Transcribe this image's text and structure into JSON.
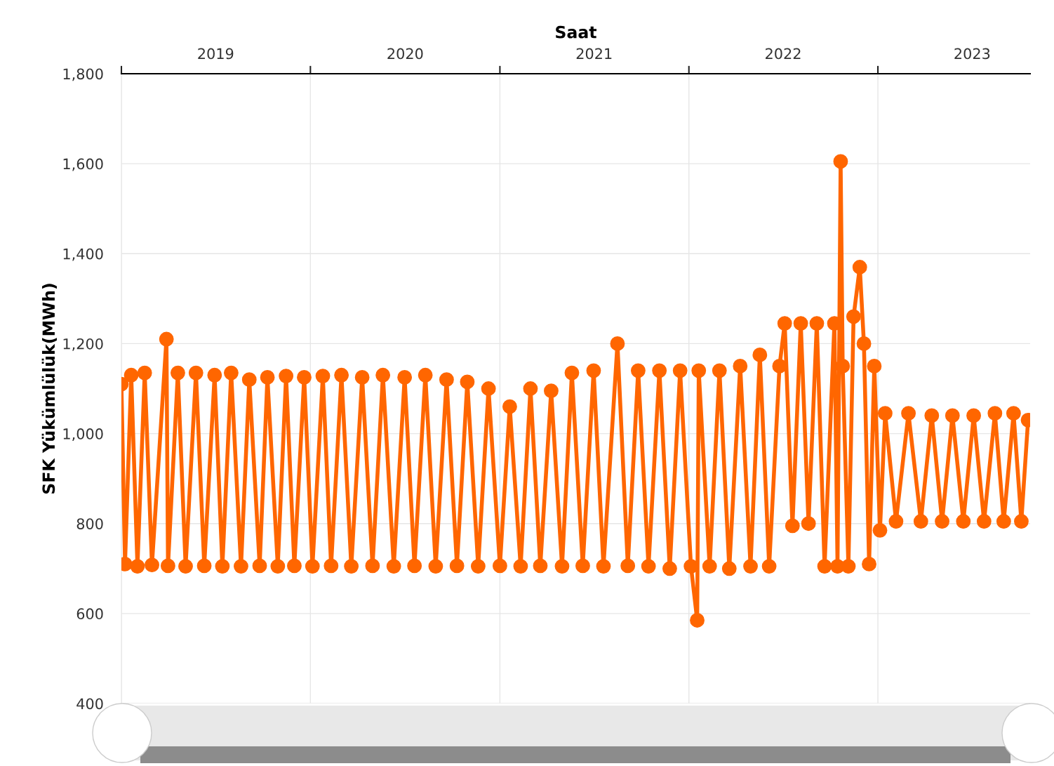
{
  "chart_data": {
    "type": "line",
    "xlabel": "Saat",
    "ylabel": "SFK Yükümlülük(MWh)",
    "xlim": [
      "2019-01-01",
      "2023-10-22"
    ],
    "xticks": [
      {
        "value": "2019-01-01",
        "label": null
      },
      {
        "value": "2019-07-02",
        "label": "2019"
      },
      {
        "value": "2020-01-01",
        "label": null
      },
      {
        "value": "2020-07-02",
        "label": "2020"
      },
      {
        "value": "2021-01-01",
        "label": null
      },
      {
        "value": "2021-07-02",
        "label": "2021"
      },
      {
        "value": "2022-01-01",
        "label": null
      },
      {
        "value": "2022-07-02",
        "label": "2022"
      },
      {
        "value": "2023-01-01",
        "label": null
      },
      {
        "value": "2023-07-02",
        "label": "2023"
      }
    ],
    "ylim": [
      400,
      1800
    ],
    "yticks": [
      400,
      600,
      800,
      {
        "value": 1000,
        "label": "1,000"
      },
      {
        "value": 1200,
        "label": "1,200"
      },
      {
        "value": 1400,
        "label": "1,400"
      },
      {
        "value": 1600,
        "label": "1,600"
      },
      {
        "value": 1800,
        "label": "1,800"
      }
    ],
    "grid": true,
    "marker": "circle",
    "series": [
      {
        "color": "#ff6600",
        "x": [
          "2019-01-01",
          "2019-01-08",
          "2019-01-20",
          "2019-02-01",
          "2019-02-15",
          "2019-03-01",
          "2019-03-29",
          "2019-04-01",
          "2019-04-20",
          "2019-05-05",
          "2019-05-25",
          "2019-06-10",
          "2019-06-30",
          "2019-07-15",
          "2019-08-01",
          "2019-08-20",
          "2019-09-05",
          "2019-09-25",
          "2019-10-10",
          "2019-10-30",
          "2019-11-15",
          "2019-12-01",
          "2019-12-20",
          "2020-01-05",
          "2020-01-25",
          "2020-02-10",
          "2020-03-01",
          "2020-03-20",
          "2020-04-10",
          "2020-04-30",
          "2020-05-20",
          "2020-06-10",
          "2020-07-01",
          "2020-07-20",
          "2020-08-10",
          "2020-08-30",
          "2020-09-20",
          "2020-10-10",
          "2020-10-30",
          "2020-11-20",
          "2020-12-10",
          "2021-01-01",
          "2021-01-20",
          "2021-02-10",
          "2021-03-01",
          "2021-03-20",
          "2021-04-10",
          "2021-05-01",
          "2021-05-20",
          "2021-06-10",
          "2021-07-01",
          "2021-07-20",
          "2021-08-16",
          "2021-09-05",
          "2021-09-25",
          "2021-10-15",
          "2021-11-05",
          "2021-11-25",
          "2021-12-15",
          "2022-01-05",
          "2022-01-17",
          "2022-01-20",
          "2022-02-10",
          "2022-03-01",
          "2022-03-20",
          "2022-04-10",
          "2022-04-30",
          "2022-05-18",
          "2022-06-05",
          "2022-06-25",
          "2022-07-05",
          "2022-07-20",
          "2022-08-05",
          "2022-08-20",
          "2022-09-05",
          "2022-09-20",
          "2022-10-09",
          "2022-10-15",
          "2022-10-21",
          "2022-10-25",
          "2022-11-05",
          "2022-11-15",
          "2022-11-27",
          "2022-12-05",
          "2022-12-15",
          "2022-12-25",
          "2023-01-05",
          "2023-01-15",
          "2023-02-05",
          "2023-03-01",
          "2023-03-25",
          "2023-04-15",
          "2023-05-05",
          "2023-05-25",
          "2023-06-15",
          "2023-07-05",
          "2023-07-25",
          "2023-08-15",
          "2023-09-01",
          "2023-09-20",
          "2023-10-05",
          "2023-10-18"
        ],
        "values": [
          1110,
          710,
          1130,
          705,
          1135,
          708,
          1210,
          706,
          1135,
          705,
          1135,
          706,
          1130,
          705,
          1135,
          705,
          1120,
          706,
          1125,
          705,
          1128,
          706,
          1125,
          705,
          1128,
          706,
          1130,
          705,
          1125,
          706,
          1130,
          705,
          1125,
          706,
          1130,
          705,
          1120,
          706,
          1115,
          705,
          1100,
          706,
          1060,
          705,
          1100,
          706,
          1095,
          705,
          1135,
          706,
          1140,
          705,
          1200,
          706,
          1140,
          705,
          1140,
          700,
          1140,
          705,
          585,
          1140,
          705,
          1140,
          700,
          1150,
          705,
          1175,
          705,
          1150,
          1245,
          795,
          1245,
          800,
          1245,
          705,
          1245,
          705,
          1605,
          1150,
          705,
          1260,
          1370,
          1200,
          710,
          1150,
          785,
          1045,
          805,
          1045,
          805,
          1040,
          805,
          1040,
          805,
          1040,
          805,
          1045,
          805,
          1045,
          805,
          1030
        ]
      }
    ]
  }
}
